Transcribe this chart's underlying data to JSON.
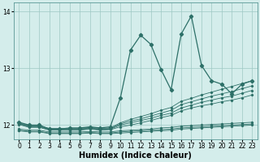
{
  "bg_color": "#d4edeb",
  "line_color": "#2d7068",
  "grid_color": "#9ec8c4",
  "xlabel": "Humidex (Indice chaleur)",
  "xlabel_fontsize": 7,
  "ylim": [
    11.75,
    14.15
  ],
  "xlim": [
    -0.5,
    23.5
  ],
  "yticks": [
    12,
    13,
    14
  ],
  "xticks": [
    0,
    1,
    2,
    3,
    4,
    5,
    6,
    7,
    8,
    9,
    10,
    11,
    12,
    13,
    14,
    15,
    16,
    17,
    18,
    19,
    20,
    21,
    22,
    23
  ],
  "line_jagged_x": [
    0,
    1,
    2,
    3,
    4,
    5,
    6,
    7,
    8,
    9,
    10,
    11,
    12,
    13,
    14,
    15,
    16,
    17,
    18,
    19,
    20,
    21,
    22,
    23
  ],
  "line_jagged_y": [
    12.05,
    12.0,
    12.0,
    11.93,
    11.93,
    11.95,
    11.95,
    11.97,
    11.95,
    11.97,
    12.48,
    13.32,
    13.58,
    13.42,
    12.98,
    12.62,
    13.6,
    13.92,
    13.05,
    12.78,
    12.72,
    12.55,
    12.72,
    12.78
  ],
  "trend_lines": [
    [
      12.04,
      11.99,
      11.99,
      11.94,
      11.94,
      11.94,
      11.94,
      11.96,
      11.94,
      11.95,
      12.04,
      12.1,
      12.15,
      12.2,
      12.26,
      12.31,
      12.42,
      12.47,
      12.53,
      12.58,
      12.63,
      12.68,
      12.73,
      12.78
    ],
    [
      12.03,
      11.98,
      11.98,
      11.93,
      11.93,
      11.93,
      11.93,
      11.95,
      11.93,
      11.94,
      12.02,
      12.07,
      12.11,
      12.16,
      12.21,
      12.26,
      12.36,
      12.41,
      12.46,
      12.51,
      12.55,
      12.59,
      12.64,
      12.69
    ],
    [
      12.02,
      11.97,
      11.97,
      11.92,
      11.92,
      11.92,
      11.92,
      11.94,
      11.92,
      11.93,
      12.0,
      12.04,
      12.08,
      12.12,
      12.17,
      12.21,
      12.3,
      12.35,
      12.4,
      12.44,
      12.48,
      12.51,
      12.56,
      12.61
    ],
    [
      12.01,
      11.96,
      11.96,
      11.91,
      11.91,
      11.91,
      11.91,
      11.93,
      11.91,
      11.92,
      11.97,
      12.0,
      12.04,
      12.08,
      12.13,
      12.17,
      12.25,
      12.3,
      12.34,
      12.37,
      12.41,
      12.44,
      12.48,
      12.53
    ]
  ],
  "flat_lines": [
    [
      11.93,
      11.91,
      11.91,
      11.88,
      11.88,
      11.88,
      11.88,
      11.89,
      11.88,
      11.88,
      11.9,
      11.91,
      11.92,
      11.93,
      11.95,
      11.96,
      11.98,
      11.99,
      12.0,
      12.01,
      12.02,
      12.03,
      12.04,
      12.05
    ],
    [
      11.91,
      11.89,
      11.89,
      11.86,
      11.86,
      11.86,
      11.86,
      11.87,
      11.86,
      11.86,
      11.88,
      11.89,
      11.9,
      11.91,
      11.92,
      11.93,
      11.95,
      11.96,
      11.97,
      11.98,
      11.99,
      12.0,
      12.01,
      12.02
    ],
    [
      11.9,
      11.88,
      11.88,
      11.85,
      11.85,
      11.85,
      11.85,
      11.86,
      11.85,
      11.85,
      11.86,
      11.87,
      11.88,
      11.89,
      11.9,
      11.91,
      11.93,
      11.94,
      11.95,
      11.96,
      11.97,
      11.98,
      11.99,
      12.0
    ]
  ]
}
